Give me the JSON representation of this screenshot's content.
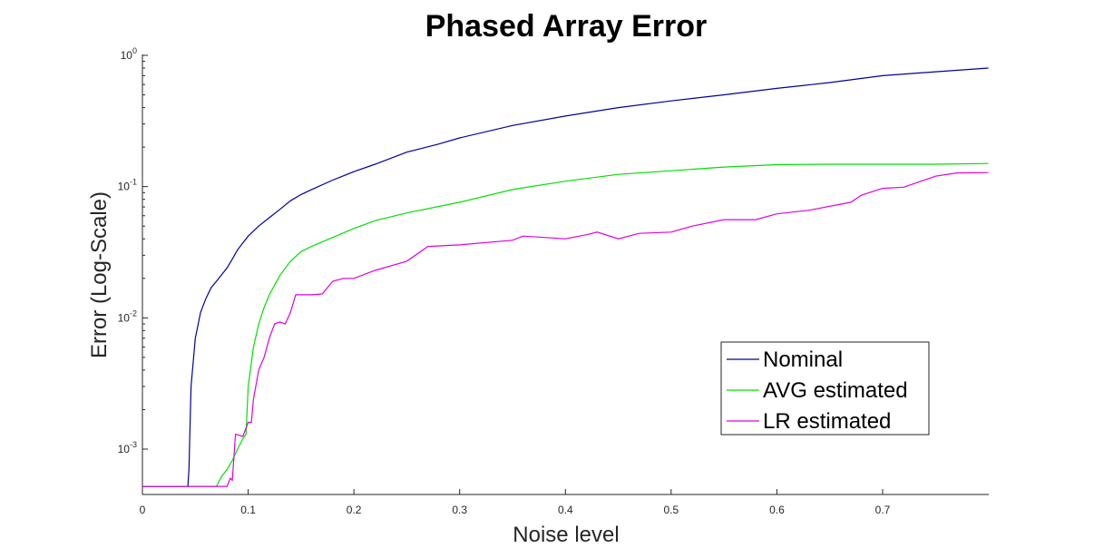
{
  "chart_data": {
    "type": "line",
    "title": "Phased Array Error",
    "xlabel": "Noise level",
    "ylabel": "Error (Log-Scale)",
    "xlim": [
      0,
      0.8
    ],
    "ylim": [
      0.00045,
      1.1
    ],
    "y_scale": "log",
    "grid": false,
    "legend_position": "bottom-right",
    "x_ticks": [
      0,
      0.1,
      0.2,
      0.3,
      0.4,
      0.5,
      0.6,
      0.7
    ],
    "x_tick_labels": [
      "0",
      "0.1",
      "0.2",
      "0.3",
      "0.4",
      "0.5",
      "0.6",
      "0.7"
    ],
    "y_ticks": [
      {
        "value": 0.001,
        "base": "10",
        "exp": "-3"
      },
      {
        "value": 0.01,
        "base": "10",
        "exp": "-2"
      },
      {
        "value": 0.1,
        "base": "10",
        "exp": "-1"
      },
      {
        "value": 1,
        "base": "10",
        "exp": "0"
      }
    ],
    "series": [
      {
        "name": "Nominal",
        "color": "#0000a0",
        "points": [
          [
            0,
            0.00052
          ],
          [
            0.043,
            0.00052
          ],
          [
            0.044,
            0.0007
          ],
          [
            0.046,
            0.003
          ],
          [
            0.05,
            0.007
          ],
          [
            0.055,
            0.011
          ],
          [
            0.06,
            0.014
          ],
          [
            0.065,
            0.017
          ],
          [
            0.07,
            0.019
          ],
          [
            0.08,
            0.024
          ],
          [
            0.085,
            0.028
          ],
          [
            0.09,
            0.033
          ],
          [
            0.1,
            0.042
          ],
          [
            0.11,
            0.05
          ],
          [
            0.12,
            0.058
          ],
          [
            0.13,
            0.067
          ],
          [
            0.14,
            0.078
          ],
          [
            0.15,
            0.087
          ],
          [
            0.16,
            0.095
          ],
          [
            0.18,
            0.112
          ],
          [
            0.2,
            0.13
          ],
          [
            0.22,
            0.148
          ],
          [
            0.25,
            0.183
          ],
          [
            0.28,
            0.211
          ],
          [
            0.3,
            0.235
          ],
          [
            0.35,
            0.292
          ],
          [
            0.4,
            0.345
          ],
          [
            0.45,
            0.4
          ],
          [
            0.5,
            0.45
          ],
          [
            0.55,
            0.5
          ],
          [
            0.6,
            0.56
          ],
          [
            0.65,
            0.62
          ],
          [
            0.7,
            0.7
          ],
          [
            0.75,
            0.75
          ],
          [
            0.8,
            0.8
          ]
        ]
      },
      {
        "name": "AVG estimated",
        "color": "#00e000",
        "points": [
          [
            0,
            0.00052
          ],
          [
            0.07,
            0.00052
          ],
          [
            0.075,
            0.00062
          ],
          [
            0.08,
            0.0007
          ],
          [
            0.085,
            0.00082
          ],
          [
            0.09,
            0.001
          ],
          [
            0.095,
            0.0012
          ],
          [
            0.098,
            0.0013
          ],
          [
            0.1,
            0.003
          ],
          [
            0.105,
            0.006
          ],
          [
            0.11,
            0.009
          ],
          [
            0.115,
            0.012
          ],
          [
            0.12,
            0.015
          ],
          [
            0.13,
            0.021
          ],
          [
            0.14,
            0.027
          ],
          [
            0.15,
            0.032
          ],
          [
            0.16,
            0.035
          ],
          [
            0.18,
            0.041
          ],
          [
            0.2,
            0.048
          ],
          [
            0.22,
            0.055
          ],
          [
            0.25,
            0.063
          ],
          [
            0.3,
            0.076
          ],
          [
            0.35,
            0.095
          ],
          [
            0.4,
            0.11
          ],
          [
            0.45,
            0.124
          ],
          [
            0.5,
            0.132
          ],
          [
            0.55,
            0.141
          ],
          [
            0.6,
            0.147
          ],
          [
            0.65,
            0.148
          ],
          [
            0.7,
            0.148
          ],
          [
            0.75,
            0.148
          ],
          [
            0.8,
            0.15
          ]
        ]
      },
      {
        "name": "LR estimated",
        "color": "#e000e0",
        "points": [
          [
            0,
            0.00052
          ],
          [
            0.08,
            0.00052
          ],
          [
            0.083,
            0.0006
          ],
          [
            0.085,
            0.00058
          ],
          [
            0.088,
            0.0013
          ],
          [
            0.095,
            0.00125
          ],
          [
            0.1,
            0.0016
          ],
          [
            0.103,
            0.0016
          ],
          [
            0.105,
            0.0024
          ],
          [
            0.11,
            0.004
          ],
          [
            0.115,
            0.005
          ],
          [
            0.12,
            0.007
          ],
          [
            0.125,
            0.009
          ],
          [
            0.13,
            0.0093
          ],
          [
            0.135,
            0.009
          ],
          [
            0.14,
            0.011
          ],
          [
            0.145,
            0.015
          ],
          [
            0.16,
            0.015
          ],
          [
            0.17,
            0.0152
          ],
          [
            0.18,
            0.019
          ],
          [
            0.19,
            0.02
          ],
          [
            0.2,
            0.02
          ],
          [
            0.22,
            0.023
          ],
          [
            0.25,
            0.027
          ],
          [
            0.27,
            0.035
          ],
          [
            0.3,
            0.036
          ],
          [
            0.35,
            0.039
          ],
          [
            0.36,
            0.042
          ],
          [
            0.38,
            0.041
          ],
          [
            0.4,
            0.04
          ],
          [
            0.42,
            0.043
          ],
          [
            0.43,
            0.045
          ],
          [
            0.45,
            0.04
          ],
          [
            0.47,
            0.044
          ],
          [
            0.5,
            0.045
          ],
          [
            0.52,
            0.05
          ],
          [
            0.55,
            0.056
          ],
          [
            0.58,
            0.056
          ],
          [
            0.6,
            0.062
          ],
          [
            0.63,
            0.066
          ],
          [
            0.67,
            0.076
          ],
          [
            0.68,
            0.086
          ],
          [
            0.7,
            0.097
          ],
          [
            0.72,
            0.099
          ],
          [
            0.75,
            0.12
          ],
          [
            0.77,
            0.127
          ],
          [
            0.8,
            0.128
          ]
        ]
      }
    ]
  }
}
